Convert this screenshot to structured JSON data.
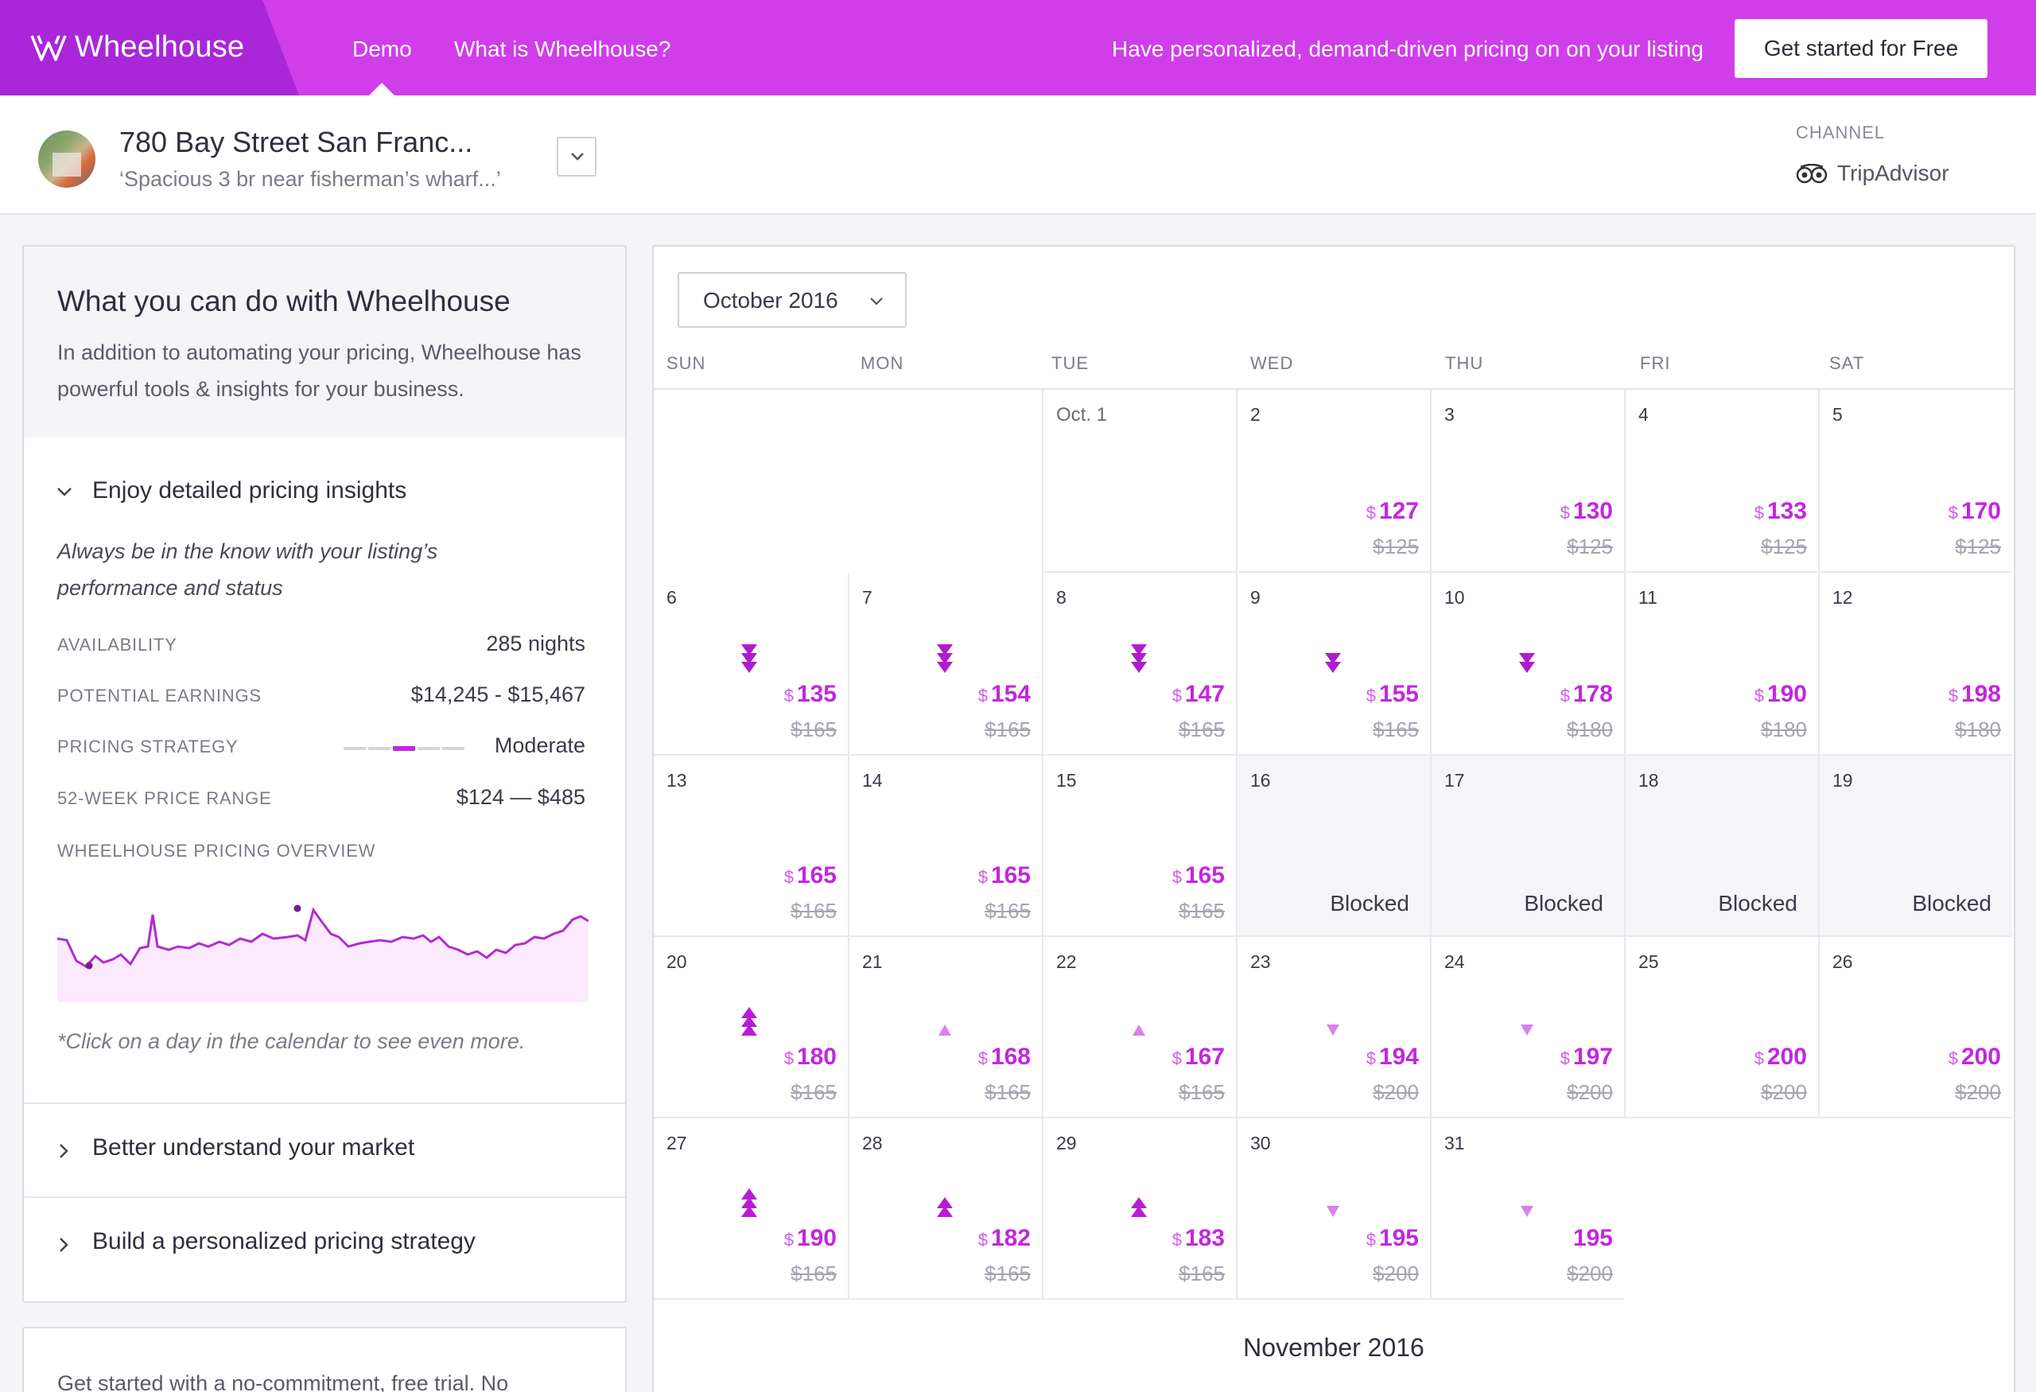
{
  "brand": {
    "name": "Wheelhouse"
  },
  "nav": {
    "demo": "Demo",
    "what": "What is Wheelhouse?",
    "tagline": "Have personalized, demand-driven pricing on on your listing",
    "cta": "Get started for Free"
  },
  "listing": {
    "title": "780 Bay Street San Franc...",
    "subtitle": "‘Spacious 3 br near fisherman’s wharf...’",
    "channel_label": "CHANNEL",
    "channel": "TripAdvisor"
  },
  "panel": {
    "title": "What you can do with Wheelhouse",
    "intro": "In addition to automating your pricing, Wheelhouse has powerful tools & insights for your business.",
    "section1": {
      "title": "Enjoy detailed pricing insights",
      "description": "Always be in the know with your listing’s performance and status",
      "stats": [
        {
          "label": "AVAILABILITY",
          "value": "285 nights"
        },
        {
          "label": "POTENTIAL EARNINGS",
          "value": "$14,245 - $15,467"
        },
        {
          "label": "PRICING STRATEGY",
          "value": "Moderate",
          "level": 3,
          "of": 5
        },
        {
          "label": "52-WEEK PRICE RANGE",
          "value": "$124 —  $485"
        }
      ],
      "overview_label": "WHEELHOUSE PRICING OVERVIEW",
      "note": "*Click on a day in the calendar to see even more."
    },
    "section2": {
      "title": "Better understand your market"
    },
    "section3": {
      "title": "Build a personalized pricing strategy"
    },
    "trial_text": "Get started with a no-commitment, free trial. No"
  },
  "calendar": {
    "month": "October 2016",
    "days": [
      "SUN",
      "MON",
      "TUE",
      "WED",
      "THU",
      "FRI",
      "SAT"
    ],
    "next_month": "November 2016",
    "cells": [
      {
        "day": "Oct. 1"
      },
      {
        "day": "2",
        "price": "127",
        "orig": "$125"
      },
      {
        "day": "3",
        "price": "130",
        "orig": "$125"
      },
      {
        "day": "4",
        "price": "133",
        "orig": "$125"
      },
      {
        "day": "5",
        "price": "170",
        "orig": "$125"
      },
      {
        "day": "6",
        "price": "135",
        "orig": "$165",
        "trend": "down",
        "strength": 3
      },
      {
        "day": "7",
        "price": "154",
        "orig": "$165",
        "trend": "down",
        "strength": 3
      },
      {
        "day": "8",
        "price": "147",
        "orig": "$165",
        "trend": "down",
        "strength": 3
      },
      {
        "day": "9",
        "price": "155",
        "orig": "$165",
        "trend": "down",
        "strength": 2
      },
      {
        "day": "10",
        "price": "178",
        "orig": "$180",
        "trend": "down",
        "strength": 2
      },
      {
        "day": "11",
        "price": "190",
        "orig": "$180"
      },
      {
        "day": "12",
        "price": "198",
        "orig": "$180"
      },
      {
        "day": "13",
        "price": "165",
        "orig": "$165"
      },
      {
        "day": "14",
        "price": "165",
        "orig": "$165"
      },
      {
        "day": "15",
        "price": "165",
        "orig": "$165"
      },
      {
        "day": "16",
        "status": "Blocked"
      },
      {
        "day": "17",
        "status": "Blocked"
      },
      {
        "day": "18",
        "status": "Blocked"
      },
      {
        "day": "19",
        "status": "Blocked"
      },
      {
        "day": "20",
        "price": "180",
        "orig": "$165",
        "trend": "up",
        "strength": 3
      },
      {
        "day": "21",
        "price": "168",
        "orig": "$165",
        "trend": "up",
        "strength": 1
      },
      {
        "day": "22",
        "price": "167",
        "orig": "$165",
        "trend": "up",
        "strength": 1
      },
      {
        "day": "23",
        "price": "194",
        "orig": "$200",
        "trend": "down",
        "strength": 1
      },
      {
        "day": "24",
        "price": "197",
        "orig": "$200",
        "trend": "down",
        "strength": 1
      },
      {
        "day": "25",
        "price": "200",
        "orig": "$200"
      },
      {
        "day": "26",
        "price": "200",
        "orig": "$200"
      },
      {
        "day": "27",
        "price": "190",
        "orig": "$165",
        "trend": "up",
        "strength": 3
      },
      {
        "day": "28",
        "price": "182",
        "orig": "$165",
        "trend": "up",
        "strength": 2
      },
      {
        "day": "29",
        "price": "183",
        "orig": "$165",
        "trend": "up",
        "strength": 2
      },
      {
        "day": "30",
        "price": "195",
        "orig": "$200",
        "trend": "down",
        "strength": 1
      },
      {
        "day": "31",
        "price": "195",
        "orig": "$200",
        "trend": "down",
        "strength": 1,
        "no_currency": true
      }
    ]
  },
  "colors": {
    "nav": "#cf3ee8",
    "brand": "#a927d9",
    "accent": "#c326e0",
    "strike": "#a5a5b0"
  }
}
